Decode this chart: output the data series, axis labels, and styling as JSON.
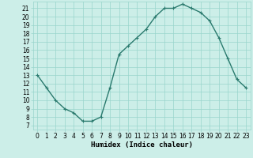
{
  "x": [
    0,
    1,
    2,
    3,
    4,
    5,
    6,
    7,
    8,
    9,
    10,
    11,
    12,
    13,
    14,
    15,
    16,
    17,
    18,
    19,
    20,
    21,
    22,
    23
  ],
  "y": [
    13,
    11.5,
    10,
    9,
    8.5,
    7.5,
    7.5,
    8,
    11.5,
    15.5,
    16.5,
    17.5,
    18.5,
    20,
    21,
    21,
    21.5,
    21,
    20.5,
    19.5,
    17.5,
    15,
    12.5,
    11.5
  ],
  "line_color": "#2a7a6e",
  "marker": "+",
  "bg_color": "#cceee8",
  "grid_color": "#99d5cc",
  "xlabel": "Humidex (Indice chaleur)",
  "xlim_min": -0.5,
  "xlim_max": 23.5,
  "ylim_min": 6.5,
  "ylim_max": 21.8,
  "yticks": [
    7,
    8,
    9,
    10,
    11,
    12,
    13,
    14,
    15,
    16,
    17,
    18,
    19,
    20,
    21
  ],
  "xticks": [
    0,
    1,
    2,
    3,
    4,
    5,
    6,
    7,
    8,
    9,
    10,
    11,
    12,
    13,
    14,
    15,
    16,
    17,
    18,
    19,
    20,
    21,
    22,
    23
  ],
  "xlabel_fontsize": 6.5,
  "tick_fontsize": 5.5,
  "line_width": 1.0,
  "marker_size": 3.5,
  "marker_edge_width": 0.8
}
